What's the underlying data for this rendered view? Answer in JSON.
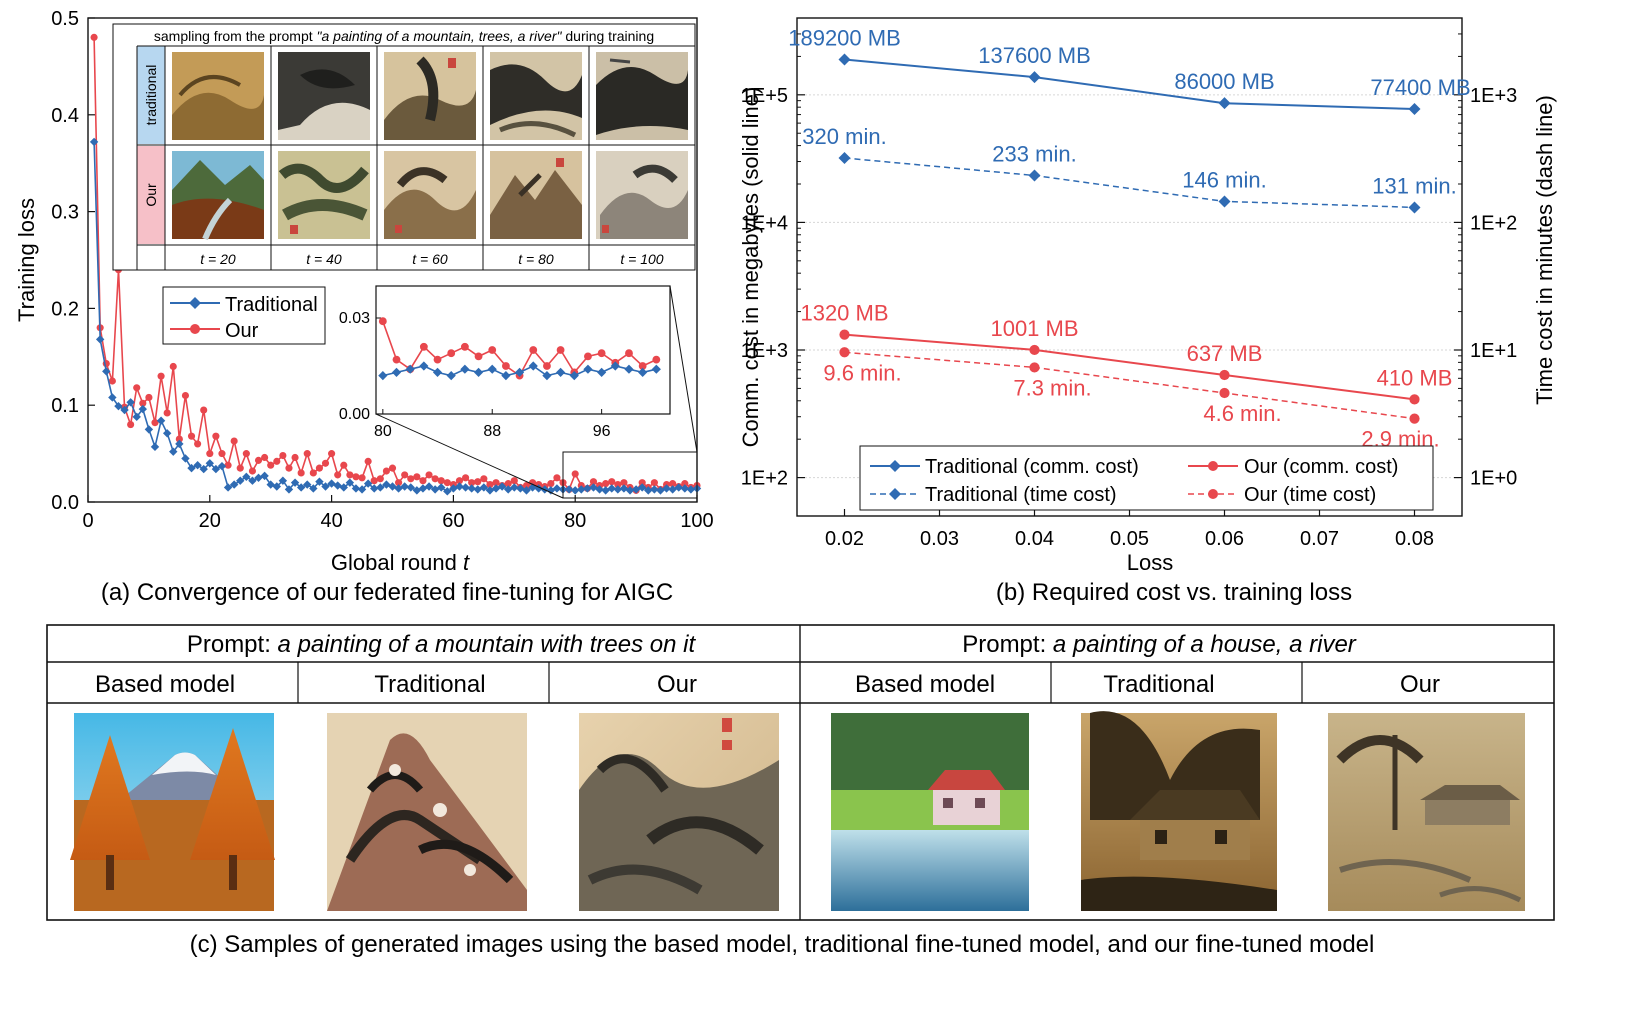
{
  "colors": {
    "traditional": "#2f6bb3",
    "our": "#e8474d",
    "axis": "#111111"
  },
  "chart_data": [
    {
      "id": "convergence",
      "type": "line",
      "panel_caption": "(a) Convergence of our federated fine-tuning for AIGC",
      "xlabel": "Global round",
      "xlabel_var": "t",
      "ylabel": "Training loss",
      "xlim": [
        0,
        100
      ],
      "ylim": [
        0,
        0.5
      ],
      "xticks": [
        0,
        20,
        40,
        60,
        80,
        100
      ],
      "yticks": [
        0.0,
        0.1,
        0.2,
        0.3,
        0.4,
        0.5
      ],
      "ytick_labels": [
        "0.0",
        "0.1",
        "0.2",
        "0.3",
        "0.4",
        "0.5"
      ],
      "legend": {
        "placement": "center-left",
        "entries": [
          "Traditional",
          "Our"
        ]
      },
      "x": [
        1,
        2,
        3,
        4,
        5,
        6,
        7,
        8,
        9,
        10,
        11,
        12,
        13,
        14,
        15,
        16,
        17,
        18,
        19,
        20,
        21,
        22,
        23,
        24,
        25,
        26,
        27,
        28,
        29,
        30,
        31,
        32,
        33,
        34,
        35,
        36,
        37,
        38,
        39,
        40,
        41,
        42,
        43,
        44,
        45,
        46,
        47,
        48,
        49,
        50,
        51,
        52,
        53,
        54,
        55,
        56,
        57,
        58,
        59,
        60,
        61,
        62,
        63,
        64,
        65,
        66,
        67,
        68,
        69,
        70,
        71,
        72,
        73,
        74,
        75,
        76,
        77,
        78,
        79,
        80,
        81,
        82,
        83,
        84,
        85,
        86,
        87,
        88,
        89,
        90,
        91,
        92,
        93,
        94,
        95,
        96,
        97,
        98,
        99,
        100
      ],
      "series": [
        {
          "name": "Traditional",
          "color_key": "traditional",
          "marker": "diamond",
          "values": [
            0.372,
            0.168,
            0.135,
            0.108,
            0.099,
            0.095,
            0.103,
            0.088,
            0.096,
            0.075,
            0.057,
            0.084,
            0.071,
            0.052,
            0.06,
            0.045,
            0.035,
            0.038,
            0.034,
            0.04,
            0.034,
            0.037,
            0.015,
            0.018,
            0.022,
            0.026,
            0.022,
            0.025,
            0.027,
            0.018,
            0.016,
            0.022,
            0.013,
            0.02,
            0.015,
            0.018,
            0.014,
            0.021,
            0.016,
            0.019,
            0.017,
            0.015,
            0.02,
            0.014,
            0.013,
            0.019,
            0.014,
            0.015,
            0.018,
            0.016,
            0.014,
            0.016,
            0.015,
            0.012,
            0.014,
            0.016,
            0.013,
            0.015,
            0.011,
            0.014,
            0.016,
            0.015,
            0.014,
            0.013,
            0.015,
            0.012,
            0.014,
            0.016,
            0.013,
            0.015,
            0.014,
            0.012,
            0.015,
            0.014,
            0.013,
            0.012,
            0.014,
            0.013,
            0.013,
            0.012,
            0.013,
            0.014,
            0.015,
            0.013,
            0.012,
            0.014,
            0.013,
            0.014,
            0.012,
            0.013,
            0.015,
            0.012,
            0.013,
            0.012,
            0.014,
            0.013,
            0.015,
            0.014,
            0.013,
            0.014
          ]
        },
        {
          "name": "Our",
          "color_key": "our",
          "marker": "circle",
          "values": [
            0.48,
            0.18,
            0.143,
            0.125,
            0.24,
            0.098,
            0.08,
            0.118,
            0.102,
            0.108,
            0.082,
            0.13,
            0.092,
            0.14,
            0.065,
            0.11,
            0.068,
            0.06,
            0.095,
            0.05,
            0.068,
            0.05,
            0.038,
            0.063,
            0.035,
            0.05,
            0.032,
            0.043,
            0.046,
            0.038,
            0.042,
            0.048,
            0.035,
            0.046,
            0.03,
            0.05,
            0.03,
            0.035,
            0.04,
            0.05,
            0.028,
            0.038,
            0.028,
            0.026,
            0.025,
            0.042,
            0.022,
            0.024,
            0.032,
            0.035,
            0.02,
            0.028,
            0.024,
            0.026,
            0.022,
            0.028,
            0.024,
            0.022,
            0.02,
            0.018,
            0.022,
            0.025,
            0.02,
            0.021,
            0.024,
            0.018,
            0.02,
            0.017,
            0.019,
            0.022,
            0.015,
            0.017,
            0.02,
            0.018,
            0.016,
            0.019,
            0.025,
            0.02,
            0.013,
            0.029,
            0.017,
            0.014,
            0.021,
            0.017,
            0.019,
            0.021,
            0.018,
            0.02,
            0.015,
            0.012,
            0.02,
            0.015,
            0.02,
            0.013,
            0.018,
            0.019,
            0.016,
            0.019,
            0.015,
            0.017
          ]
        }
      ],
      "inset_zoom": {
        "xlim": [
          79.5,
          101
        ],
        "ylim": [
          0,
          0.04
        ],
        "xticks": [
          80,
          88,
          96
        ],
        "yticks": [
          0.0,
          0.03
        ],
        "ytick_labels": [
          "0.00",
          "0.03"
        ]
      },
      "sample_grid": {
        "title_prefix": "sampling from the prompt",
        "title_prompt": "\"a painting of a mountain, trees, a river\"",
        "title_suffix": "during training",
        "row_labels": [
          "traditional",
          "Our"
        ],
        "row_colors": [
          "#b7d7f0",
          "#f6c0c8"
        ],
        "col_labels": [
          "t = 20",
          "t = 40",
          "t = 60",
          "t = 80",
          "t = 100"
        ]
      }
    },
    {
      "id": "cost",
      "type": "line",
      "panel_caption": "(b) Required cost vs. training loss",
      "xlabel": "Loss",
      "ylabel_left": "Comm. cost in megabytes (solid line)",
      "ylabel_right": "Time cost in minutes (dash line)",
      "xlim": [
        0.015,
        0.085
      ],
      "xticks": [
        0.02,
        0.03,
        0.04,
        0.05,
        0.06,
        0.07,
        0.08
      ],
      "xtick_labels": [
        "0.02",
        "0.03",
        "0.04",
        "0.05",
        "0.06",
        "0.07",
        "0.08"
      ],
      "y_scale": "log",
      "ylim_left": [
        50,
        400000
      ],
      "yticks_left": [
        "1E+2",
        "1E+3",
        "1E+4",
        "1E+5"
      ],
      "ylim_right": [
        0.5,
        4000
      ],
      "yticks_right": [
        "1E+0",
        "1E+1",
        "1E+2",
        "1E+3"
      ],
      "grid": "horizontal",
      "legend": {
        "placement": "bottom",
        "entries": [
          "Traditional (comm. cost)",
          "Our (comm. cost)",
          "Traditional (time cost)",
          "Our (time cost)"
        ]
      },
      "x": [
        0.02,
        0.04,
        0.06,
        0.08
      ],
      "series": [
        {
          "name": "Traditional (comm. cost)",
          "axis": "left",
          "style": "solid",
          "marker": "diamond",
          "color_key": "traditional",
          "values": [
            189200,
            137600,
            86000,
            77400
          ],
          "labels": [
            "189200 MB",
            "137600 MB",
            "86000 MB",
            "77400 MB"
          ]
        },
        {
          "name": "Traditional (time cost)",
          "axis": "right",
          "style": "dash",
          "marker": "diamond",
          "color_key": "traditional",
          "values": [
            320,
            233,
            146,
            131
          ],
          "labels": [
            "320 min.",
            "233 min.",
            "146 min.",
            "131 min."
          ]
        },
        {
          "name": "Our (comm. cost)",
          "axis": "left",
          "style": "solid",
          "marker": "circle",
          "color_key": "our",
          "values": [
            1320,
            1001,
            637,
            410
          ],
          "labels": [
            "1320 MB",
            "1001 MB",
            "637 MB",
            "410 MB"
          ]
        },
        {
          "name": "Our (time cost)",
          "axis": "right",
          "style": "dash",
          "marker": "circle",
          "color_key": "our",
          "values": [
            9.6,
            7.3,
            4.6,
            2.9
          ],
          "labels": [
            "9.6 min.",
            "7.3 min.",
            "4.6 min.",
            "2.9 min."
          ]
        }
      ]
    },
    {
      "id": "samples",
      "type": "table",
      "panel_caption": "(c) Samples of generated images using the based model, traditional fine-tuned model, and our fine-tuned model",
      "groups": [
        {
          "prompt_label": "Prompt:",
          "prompt_text": "a painting of a mountain with trees on it"
        },
        {
          "prompt_label": "Prompt:",
          "prompt_text": "a painting of a house, a river"
        }
      ],
      "columns": [
        "Based model",
        "Traditional",
        "Our",
        "Based model",
        "Traditional",
        "Our"
      ]
    }
  ]
}
